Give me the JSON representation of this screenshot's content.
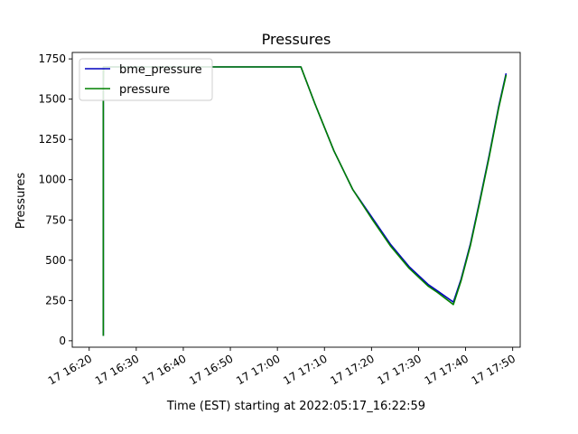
{
  "chart_data": {
    "type": "line",
    "title": "Pressures",
    "xlabel": "Time (EST) starting at 2022:05:17_16:22:59",
    "ylabel": "Pressures",
    "xlim_minutes": [
      -3.6,
      91.6
    ],
    "ylim": [
      -40,
      1790
    ],
    "x_ticks": [
      {
        "minute": 0,
        "label": "17 16:20"
      },
      {
        "minute": 10,
        "label": "17 16:30"
      },
      {
        "minute": 20,
        "label": "17 16:40"
      },
      {
        "minute": 30,
        "label": "17 16:50"
      },
      {
        "minute": 40,
        "label": "17 17:00"
      },
      {
        "minute": 50,
        "label": "17 17:10"
      },
      {
        "minute": 60,
        "label": "17 17:20"
      },
      {
        "minute": 70,
        "label": "17 17:30"
      },
      {
        "minute": 80,
        "label": "17 17:40"
      },
      {
        "minute": 90,
        "label": "17 17:50"
      }
    ],
    "y_ticks": [
      0,
      250,
      500,
      750,
      1000,
      1250,
      1500,
      1750
    ],
    "grid": false,
    "legend_position": "top-left",
    "series": [
      {
        "name": "bme_pressure",
        "color": "#0000bf",
        "x": [
          3.0,
          3.0,
          3.0,
          3.0,
          3.1,
          10.0,
          20.0,
          30.0,
          40.0,
          45.0,
          48.0,
          52.0,
          56.0,
          60.0,
          64.0,
          68.0,
          72.0,
          74.0,
          77.4,
          79.0,
          81.0,
          83.0,
          85.0,
          87.0,
          88.6
        ],
        "y": [
          30,
          1600,
          1700,
          1600,
          1700,
          1700,
          1700,
          1700,
          1700,
          1700,
          1470,
          1180,
          940,
          770,
          600,
          460,
          350,
          310,
          240,
          380,
          600,
          870,
          1150,
          1450,
          1660
        ]
      },
      {
        "name": "pressure",
        "color": "#008000",
        "x": [
          3.0,
          3.0,
          3.0,
          3.0,
          3.1,
          10.0,
          20.0,
          30.0,
          40.0,
          45.0,
          48.0,
          52.0,
          56.0,
          60.0,
          64.0,
          68.0,
          72.0,
          74.0,
          77.4,
          79.0,
          81.0,
          83.0,
          85.0,
          87.0,
          88.6
        ],
        "y": [
          30,
          1600,
          1700,
          1600,
          1700,
          1700,
          1700,
          1700,
          1700,
          1700,
          1470,
          1180,
          940,
          760,
          590,
          450,
          340,
          300,
          225,
          370,
          590,
          860,
          1140,
          1440,
          1650
        ]
      }
    ]
  }
}
